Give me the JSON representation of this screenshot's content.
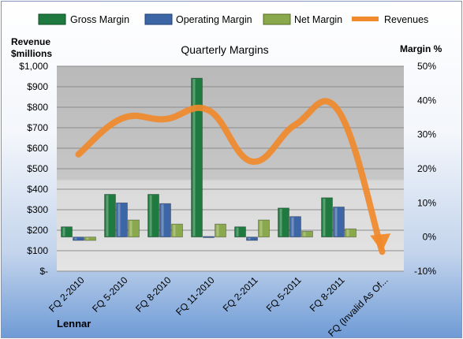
{
  "chart_data": {
    "type": "bar",
    "title": "Quarterly Margins",
    "footer": "Lennar",
    "categories": [
      "FQ 2-2010",
      "FQ 5-2010",
      "FQ 8-2010",
      "FQ 11-2010",
      "FQ 2-2011",
      "FQ 5-2011",
      "FQ 8-2011",
      "FQ (Invalid As Of..."
    ],
    "left_axis": {
      "label_line1": "Revenue",
      "label_line2": "$millions",
      "ylim": [
        0,
        1000
      ],
      "ticks": [
        "$-",
        "$100",
        "$200",
        "$300",
        "$400",
        "$500",
        "$600",
        "$700",
        "$800",
        "$900",
        "$1,000"
      ]
    },
    "right_axis": {
      "label": "Margin %",
      "ylim": [
        -10,
        50
      ],
      "ticks": [
        "-10%",
        "0%",
        "10%",
        "20%",
        "30%",
        "40%",
        "50%"
      ]
    },
    "series": [
      {
        "name": "Gross Margin",
        "kind": "bar",
        "axis": "right",
        "color": "#1e7a3e",
        "values": [
          3.0,
          12.5,
          12.5,
          46.5,
          3.0,
          8.5,
          11.5,
          null
        ]
      },
      {
        "name": "Operating Margin",
        "kind": "bar",
        "axis": "right",
        "color": "#3c66a6",
        "values": [
          -1.0,
          10.0,
          9.8,
          -0.2,
          -1.0,
          6.0,
          8.8,
          null
        ]
      },
      {
        "name": "Net Margin",
        "kind": "bar",
        "axis": "right",
        "color": "#8aa84c",
        "values": [
          -1.0,
          5.0,
          3.8,
          3.8,
          5.0,
          1.7,
          2.4,
          null
        ]
      },
      {
        "name": "Revenues",
        "kind": "line",
        "axis": "left",
        "color": "#f08a2c",
        "values": [
          570,
          745,
          742,
          785,
          535,
          715,
          780,
          95
        ]
      }
    ],
    "grid": true,
    "legend_position": "top"
  }
}
